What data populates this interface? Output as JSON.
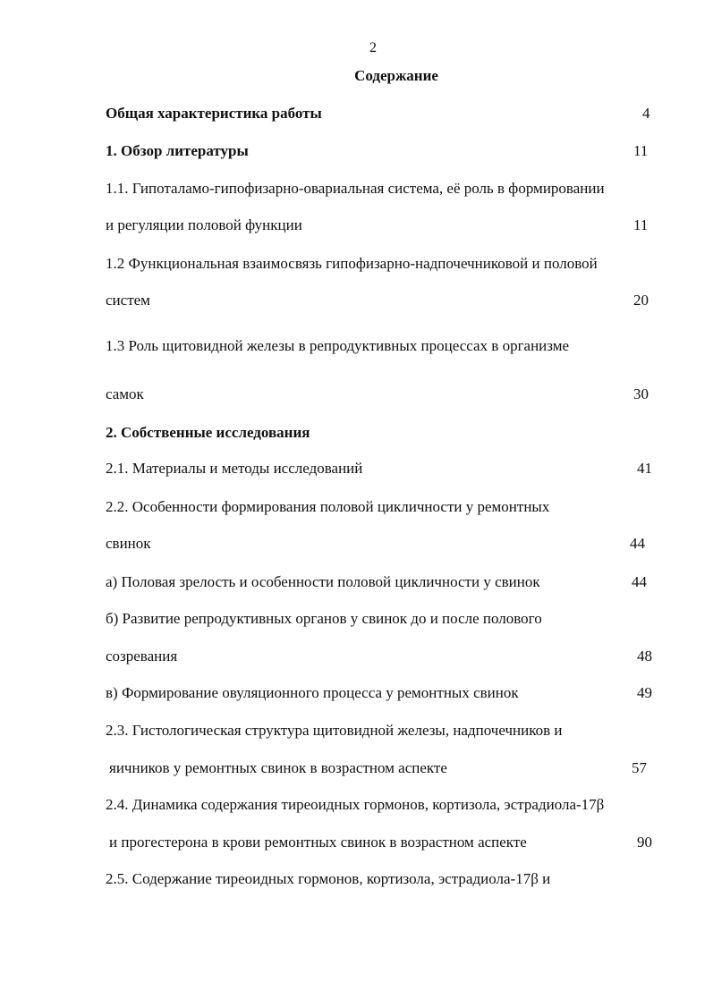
{
  "page_number": "2",
  "title": "Содержание",
  "entries": [
    {
      "text": "Общая характеристика работы",
      "page": "4",
      "bold": true
    },
    {
      "text": "1. Обзор литературы",
      "page": "11",
      "bold": true
    },
    {
      "text": "1.1. Гипоталамо-гипофизарно-овариальная система, её роль в формировании",
      "page": ""
    },
    {
      "text": "и регуляции половой функции",
      "page": "11"
    },
    {
      "text": "1.2 Функциональная взаимосвязь гипофизарно-надпочечниковой и половой",
      "page": ""
    },
    {
      "text": "систем",
      "page": "20"
    },
    {
      "text": "1.3 Роль щитовидной железы в репродуктивных процессах в организме",
      "page": ""
    },
    {
      "text": "самок",
      "page": "30"
    },
    {
      "text": "2. Собственные исследования",
      "page": "",
      "bold": true
    },
    {
      "text": "2.1. Материалы и методы исследований",
      "page": "41"
    },
    {
      "text": "2.2. Особенности формирования половой цикличности у ремонтных",
      "page": ""
    },
    {
      "text": "свинок",
      "page": "44"
    },
    {
      "text": "а) Половая зрелость и особенности половой цикличности у свинок",
      "page": "44"
    },
    {
      "text": "б) Развитие репродуктивных органов у свинок до и после полового",
      "page": ""
    },
    {
      "text": "созревания",
      "page": "48"
    },
    {
      "text": "в) Формирование овуляционного процесса у ремонтных свинок",
      "page": "49"
    },
    {
      "text": "2.3. Гистологическая структура щитовидной железы, надпочечников и",
      "page": ""
    },
    {
      "text": "яичников у ремонтных свинок в возрастном аспекте",
      "page": "57"
    },
    {
      "text": "2.4. Динамика содержания тиреоидных гормонов, кортизола, эстрадиола-17β",
      "page": ""
    },
    {
      "text": "и прогестерона в крови ремонтных свинок в возрастном аспекте",
      "page": "90"
    },
    {
      "text": "2.5. Содержание тиреоидных гормонов, кортизола, эстрадиола-17β и",
      "page": ""
    }
  ]
}
